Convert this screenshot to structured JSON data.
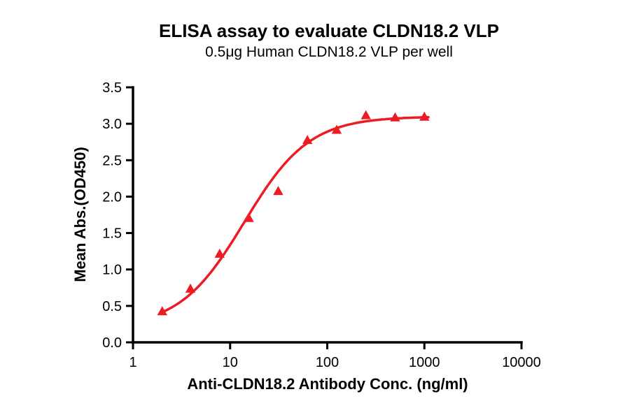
{
  "chart_data": {
    "type": "scatter",
    "title": "ELISA assay to evaluate CLDN18.2 VLP",
    "subtitle": "0.5μg Human CLDN18.2 VLP per well",
    "xlabel": "Anti-CLDN18.2 Antibody Conc. (ng/ml)",
    "ylabel": "Mean Abs.(OD450)",
    "x_scale": "log10",
    "xlim": [
      1,
      10000
    ],
    "ylim": [
      0,
      3.5
    ],
    "x_ticks": [
      1,
      10,
      100,
      1000,
      10000
    ],
    "x_tick_labels": [
      "1",
      "10",
      "100",
      "1000",
      "10000"
    ],
    "y_ticks": [
      0.0,
      0.5,
      1.0,
      1.5,
      2.0,
      2.5,
      3.0,
      3.5
    ],
    "y_tick_labels": [
      "0.0",
      "0.5",
      "1.0",
      "1.5",
      "2.0",
      "2.5",
      "3.0",
      "3.5"
    ],
    "grid": false,
    "legend": "none",
    "series": [
      {
        "name": "Human CLDN18.2 VLP",
        "marker": "triangle-up",
        "color": "#ED1C24",
        "points": [
          [
            2,
            0.42
          ],
          [
            3.9,
            0.73
          ],
          [
            7.8,
            1.21
          ],
          [
            15.6,
            1.7
          ],
          [
            31.25,
            2.07
          ],
          [
            62.5,
            2.77
          ],
          [
            125,
            2.91
          ],
          [
            250,
            3.11
          ],
          [
            500,
            3.08
          ],
          [
            1000,
            3.09
          ]
        ]
      }
    ],
    "fit_curve": {
      "model": "4PL",
      "bottom": 0.2,
      "top": 3.1,
      "ec50": 14,
      "hill": 1.3,
      "x_range": [
        2,
        1100
      ],
      "color": "#ED1C24"
    }
  }
}
